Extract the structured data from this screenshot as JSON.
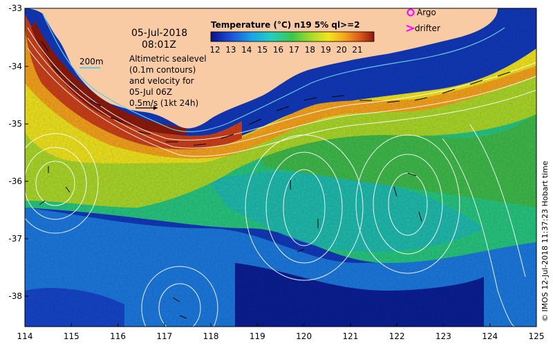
{
  "map": {
    "date": "05-Jul-2018",
    "time": "08:01Z",
    "scale_label": "200m",
    "altimetry_lines": [
      "Altimetric sealevel",
      "(0.1m contours)",
      "and velocity for",
      "05-Jul 06Z",
      "0.5m/s (1kt 24h)"
    ],
    "colorbar_title": "Temperature (°C) n19 5% ql>=2",
    "colorbar_ticks": [
      "12",
      "13",
      "14",
      "15",
      "16",
      "17",
      "18",
      "19",
      "20",
      "21"
    ],
    "legend": {
      "argo": "Argo",
      "drifter": "drifter"
    },
    "credit": "© IMOS 12-Jul-2018 11:37:23 Hobart time",
    "lon_ticks": [
      "114",
      "115",
      "116",
      "117",
      "118",
      "119",
      "120",
      "121",
      "122",
      "123",
      "124",
      "125"
    ],
    "lat_ticks": [
      "-33",
      "-34",
      "-35",
      "-36",
      "-37",
      "-38"
    ],
    "colors": {
      "land": "#f8cba5",
      "isobath": "#66ccdd",
      "contour": "#ffffff",
      "argo": "#ff00ff",
      "drifter": "#ff00ff"
    }
  }
}
